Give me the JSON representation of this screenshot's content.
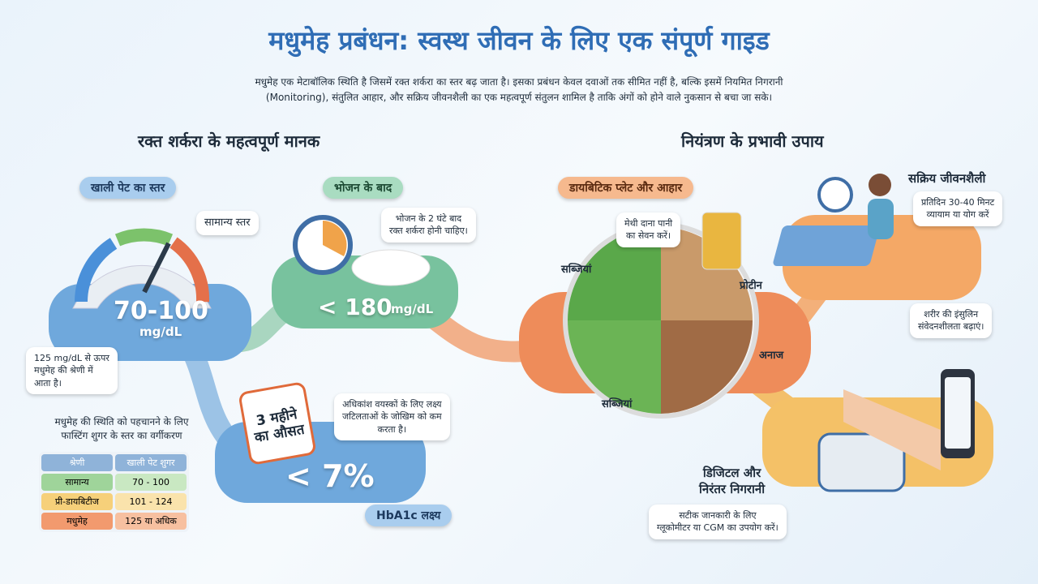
{
  "header": {
    "title": "मधुमेह प्रबंधन: स्वस्थ जीवन के लिए एक संपूर्ण गाइड",
    "intro": [
      "मधुमेह एक मेटाबॉलिक स्थिति है जिसमें रक्त शर्करा का स्तर बढ़ जाता है। इसका प्रबंधन केवल दवाओं तक सीमित नहीं है, बल्कि इसमें नियमित निगरानी",
      "(Monitoring), संतुलित आहार, और सक्रिय जीवनशैली का एक महत्वपूर्ण संतुलन शामिल है ताकि अंगों को होने वाले नुकसान से बचा जा सके।"
    ]
  },
  "left": {
    "heading": "रक्त शर्करा के महत्वपूर्ण मानक",
    "fasting": {
      "label": "खाली पेट का स्तर",
      "bubble": "सामान्य स्तर",
      "value": "70-100",
      "unit": "mg/dL",
      "note": [
        "125 mg/dL से ऊपर",
        "मधुमेह की श्रेणी में",
        "आता है।"
      ]
    },
    "postmeal": {
      "label": "भोजन के बाद",
      "bubble": [
        "भोजन के 2 घंटे बाद",
        "रक्त शर्करा होनी चाहिए।"
      ],
      "value": "< 180",
      "unit": "mg/dL"
    },
    "hba1c": {
      "calendar": [
        "3 महीने",
        "का औसत"
      ],
      "value": "< 7%",
      "label": "HbA1c लक्ष्य",
      "bubble": [
        "अधिकांश वयस्कों के लिए लक्ष्य",
        "जटिलताओं के जोखिम को कम",
        "करता है।"
      ]
    },
    "table": {
      "caption": [
        "मधुमेह की स्थिति को पहचानने के लिए",
        "फास्टिंग शुगर के स्तर का वर्गीकरण"
      ],
      "header": [
        "श्रेणी",
        "खाली पेट शुगर"
      ],
      "rows": [
        [
          "सामान्य",
          "70 - 100"
        ],
        [
          "प्री-डायबिटीज",
          "101 - 124"
        ],
        [
          "मधुमेह",
          "125 या अधिक"
        ]
      ]
    }
  },
  "right": {
    "heading": "नियंत्रण के प्रभावी उपाय",
    "plate": {
      "label": "डायबिटिक प्लेट और आहार",
      "bubble": [
        "मेथी दाना पानी",
        "का सेवन करें।"
      ],
      "parts": [
        "सब्जियां",
        "प्रोटीन",
        "अनाज",
        "सब्जियां"
      ]
    },
    "lifestyle": {
      "title": "सक्रिय जीवनशैली",
      "bubble": [
        "प्रतिदिन 30-40 मिनट",
        "व्यायाम या योग करें"
      ],
      "note": [
        "शरीर की इंसुलिन",
        "संवेदनशीलता बढ़ाएं।"
      ]
    },
    "monitoring": {
      "title": [
        "डिजिटल और",
        "निरंतर निगरानी"
      ],
      "bubble": [
        "सटीक जानकारी के लिए",
        "ग्लूकोमीटर या CGM का उपयोग करें।"
      ]
    }
  }
}
